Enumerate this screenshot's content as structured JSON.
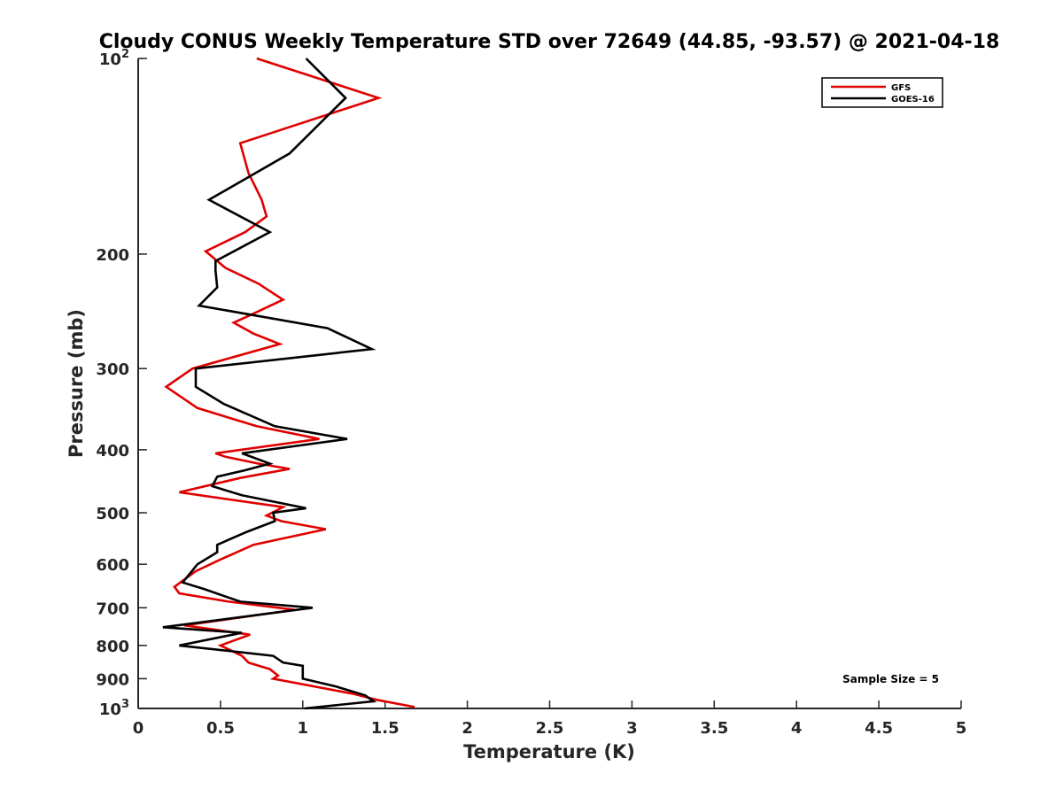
{
  "chart_data": {
    "type": "line",
    "title": "Cloudy CONUS Weekly Temperature STD over 72649 (44.85, -93.57) @ 2021-04-18",
    "xlabel": "Temperature (K)",
    "ylabel": "Pressure (mb)",
    "xlim": [
      0,
      5
    ],
    "ylim": [
      100,
      1000
    ],
    "y_scale": "log",
    "y_reversed": true,
    "x_ticks": [
      "0",
      "0.5",
      "1",
      "1.5",
      "2",
      "2.5",
      "3",
      "3.5",
      "4",
      "4.5",
      "5"
    ],
    "y_ticks": [
      {
        "value": 100,
        "base": "10",
        "exp": "2"
      },
      {
        "value": 200,
        "label": "200"
      },
      {
        "value": 300,
        "label": "300"
      },
      {
        "value": 400,
        "label": "400"
      },
      {
        "value": 500,
        "label": "500"
      },
      {
        "value": 600,
        "label": "600"
      },
      {
        "value": 700,
        "label": "700"
      },
      {
        "value": 800,
        "label": "800"
      },
      {
        "value": 900,
        "label": "900"
      },
      {
        "value": 1000,
        "base": "10",
        "exp": "3"
      }
    ],
    "legend_position": "top-right",
    "grid": false,
    "annotation": "Sample Size = 5",
    "series": [
      {
        "name": "GFS",
        "color": "#e00000",
        "points": [
          [
            0.72,
            100
          ],
          [
            1.46,
            115
          ],
          [
            0.62,
            135
          ],
          [
            0.67,
            150
          ],
          [
            0.75,
            165
          ],
          [
            0.78,
            175
          ],
          [
            0.65,
            185
          ],
          [
            0.41,
            198
          ],
          [
            0.53,
            210
          ],
          [
            0.73,
            222
          ],
          [
            0.88,
            235
          ],
          [
            0.7,
            247
          ],
          [
            0.58,
            255
          ],
          [
            0.7,
            265
          ],
          [
            0.86,
            275
          ],
          [
            0.33,
            300
          ],
          [
            0.17,
            320
          ],
          [
            0.36,
            345
          ],
          [
            0.72,
            368
          ],
          [
            1.1,
            385
          ],
          [
            0.47,
            405
          ],
          [
            0.53,
            410
          ],
          [
            0.73,
            420
          ],
          [
            0.92,
            428
          ],
          [
            0.62,
            442
          ],
          [
            0.25,
            465
          ],
          [
            0.88,
            490
          ],
          [
            0.78,
            505
          ],
          [
            0.87,
            515
          ],
          [
            1.14,
            530
          ],
          [
            0.7,
            560
          ],
          [
            0.5,
            590
          ],
          [
            0.35,
            615
          ],
          [
            0.22,
            650
          ],
          [
            0.25,
            665
          ],
          [
            0.55,
            685
          ],
          [
            0.95,
            705
          ],
          [
            0.28,
            745
          ],
          [
            0.68,
            770
          ],
          [
            0.5,
            800
          ],
          [
            0.63,
            830
          ],
          [
            0.67,
            850
          ],
          [
            0.8,
            870
          ],
          [
            0.85,
            890
          ],
          [
            0.82,
            900
          ],
          [
            1.31,
            950
          ],
          [
            1.45,
            970
          ],
          [
            1.68,
            995
          ]
        ]
      },
      {
        "name": "GOES-16",
        "color": "#000000",
        "points": [
          [
            1.02,
            100
          ],
          [
            1.26,
            115
          ],
          [
            0.92,
            140
          ],
          [
            0.43,
            165
          ],
          [
            0.8,
            185
          ],
          [
            0.47,
            205
          ],
          [
            0.47,
            212
          ],
          [
            0.48,
            225
          ],
          [
            0.37,
            240
          ],
          [
            1.15,
            260
          ],
          [
            1.42,
            280
          ],
          [
            0.35,
            300
          ],
          [
            0.35,
            320
          ],
          [
            0.52,
            340
          ],
          [
            0.83,
            368
          ],
          [
            1.27,
            385
          ],
          [
            0.63,
            405
          ],
          [
            0.8,
            420
          ],
          [
            0.65,
            430
          ],
          [
            0.48,
            440
          ],
          [
            0.45,
            455
          ],
          [
            0.63,
            470
          ],
          [
            1.02,
            492
          ],
          [
            0.82,
            500
          ],
          [
            0.83,
            515
          ],
          [
            0.66,
            535
          ],
          [
            0.48,
            560
          ],
          [
            0.48,
            575
          ],
          [
            0.36,
            600
          ],
          [
            0.27,
            640
          ],
          [
            0.4,
            655
          ],
          [
            0.62,
            685
          ],
          [
            1.06,
            700
          ],
          [
            0.15,
            750
          ],
          [
            0.63,
            765
          ],
          [
            0.25,
            800
          ],
          [
            0.82,
            830
          ],
          [
            0.88,
            850
          ],
          [
            1.0,
            860
          ],
          [
            1.0,
            900
          ],
          [
            1.2,
            925
          ],
          [
            1.38,
            955
          ],
          [
            1.43,
            975
          ],
          [
            1.01,
            1000
          ]
        ]
      }
    ]
  }
}
